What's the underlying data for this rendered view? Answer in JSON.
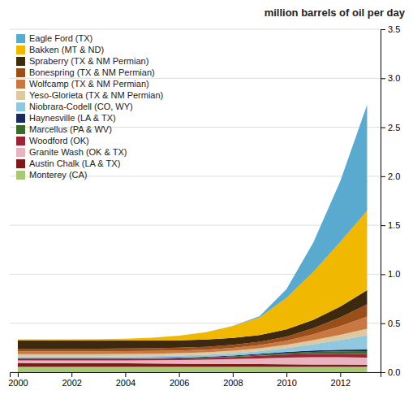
{
  "chart_data": {
    "type": "area",
    "stacked": true,
    "title": "million barrels of oil per day",
    "x": [
      2000,
      2001,
      2002,
      2003,
      2004,
      2005,
      2006,
      2007,
      2008,
      2009,
      2010,
      2011,
      2012,
      2013
    ],
    "series": [
      {
        "name": "Monterey (CA)",
        "color": "#a8c878",
        "values": [
          0.055,
          0.055,
          0.055,
          0.055,
          0.055,
          0.055,
          0.055,
          0.055,
          0.055,
          0.055,
          0.055,
          0.055,
          0.055,
          0.055
        ]
      },
      {
        "name": "Austin Chalk (LA & TX)",
        "color": "#7a1a1a",
        "values": [
          0.04,
          0.039,
          0.038,
          0.037,
          0.036,
          0.035,
          0.033,
          0.031,
          0.029,
          0.027,
          0.025,
          0.024,
          0.023,
          0.022
        ]
      },
      {
        "name": "Granite Wash (OK & TX)",
        "color": "#e8b4c0",
        "values": [
          0.025,
          0.026,
          0.027,
          0.028,
          0.03,
          0.032,
          0.036,
          0.042,
          0.05,
          0.06,
          0.07,
          0.075,
          0.075,
          0.072
        ]
      },
      {
        "name": "Woodford (OK)",
        "color": "#9b2335",
        "values": [
          0.012,
          0.012,
          0.012,
          0.012,
          0.012,
          0.013,
          0.015,
          0.018,
          0.022,
          0.026,
          0.03,
          0.033,
          0.035,
          0.036
        ]
      },
      {
        "name": "Marcellus (PA & WV)",
        "color": "#3a6b2a",
        "values": [
          0.002,
          0.002,
          0.002,
          0.002,
          0.002,
          0.002,
          0.003,
          0.004,
          0.006,
          0.01,
          0.015,
          0.02,
          0.025,
          0.03
        ]
      },
      {
        "name": "Haynesville (LA & TX)",
        "color": "#1a2a5a",
        "values": [
          0.008,
          0.008,
          0.008,
          0.008,
          0.008,
          0.008,
          0.008,
          0.008,
          0.009,
          0.01,
          0.012,
          0.015,
          0.017,
          0.018
        ]
      },
      {
        "name": "Niobrara-Codell (CO, WY)",
        "color": "#90c8e0",
        "values": [
          0.018,
          0.018,
          0.018,
          0.018,
          0.019,
          0.019,
          0.019,
          0.02,
          0.022,
          0.028,
          0.04,
          0.065,
          0.1,
          0.145
        ]
      },
      {
        "name": "Yeso-Glorieta (TX & NM Permian)",
        "color": "#ddc8a0",
        "values": [
          0.025,
          0.025,
          0.025,
          0.025,
          0.025,
          0.025,
          0.025,
          0.025,
          0.026,
          0.028,
          0.032,
          0.04,
          0.052,
          0.065
        ]
      },
      {
        "name": "Wolfcamp (TX & NM Permian)",
        "color": "#c87840",
        "values": [
          0.028,
          0.028,
          0.028,
          0.028,
          0.028,
          0.028,
          0.028,
          0.028,
          0.03,
          0.033,
          0.042,
          0.06,
          0.088,
          0.125
        ]
      },
      {
        "name": "Bonespring (TX & NM Permian)",
        "color": "#9a4e18",
        "values": [
          0.028,
          0.028,
          0.028,
          0.028,
          0.028,
          0.028,
          0.028,
          0.028,
          0.03,
          0.033,
          0.042,
          0.062,
          0.09,
          0.125
        ]
      },
      {
        "name": "Spraberry (TX & NM Permian)",
        "color": "#3d2810",
        "values": [
          0.085,
          0.084,
          0.083,
          0.082,
          0.08,
          0.078,
          0.076,
          0.074,
          0.072,
          0.07,
          0.075,
          0.085,
          0.11,
          0.145
        ]
      },
      {
        "name": "Bakken (MT & ND)",
        "color": "#f0b800",
        "values": [
          0.01,
          0.01,
          0.012,
          0.015,
          0.02,
          0.03,
          0.048,
          0.075,
          0.12,
          0.18,
          0.32,
          0.49,
          0.66,
          0.81
        ]
      },
      {
        "name": "Eagle Ford (TX)",
        "color": "#5aaad0",
        "values": [
          0.0,
          0.0,
          0.0,
          0.0,
          0.0,
          0.0,
          0.0,
          0.0,
          0.002,
          0.012,
          0.09,
          0.3,
          0.62,
          1.08
        ]
      }
    ],
    "xlim": [
      1999.7,
      2013.5
    ],
    "xticks": [
      2000,
      2002,
      2004,
      2006,
      2008,
      2010,
      2012
    ],
    "ylim": [
      0,
      3.5
    ],
    "yticks": [
      {
        "value": 0.0,
        "label": "0.0"
      },
      0.5,
      {
        "value": 1.0,
        "label": "1.0"
      },
      1.5,
      {
        "value": 2.0,
        "label": "2.0"
      },
      2.5,
      {
        "value": 3.0,
        "label": "3.0"
      },
      3.5
    ],
    "grid": true,
    "legend": "upper left"
  }
}
